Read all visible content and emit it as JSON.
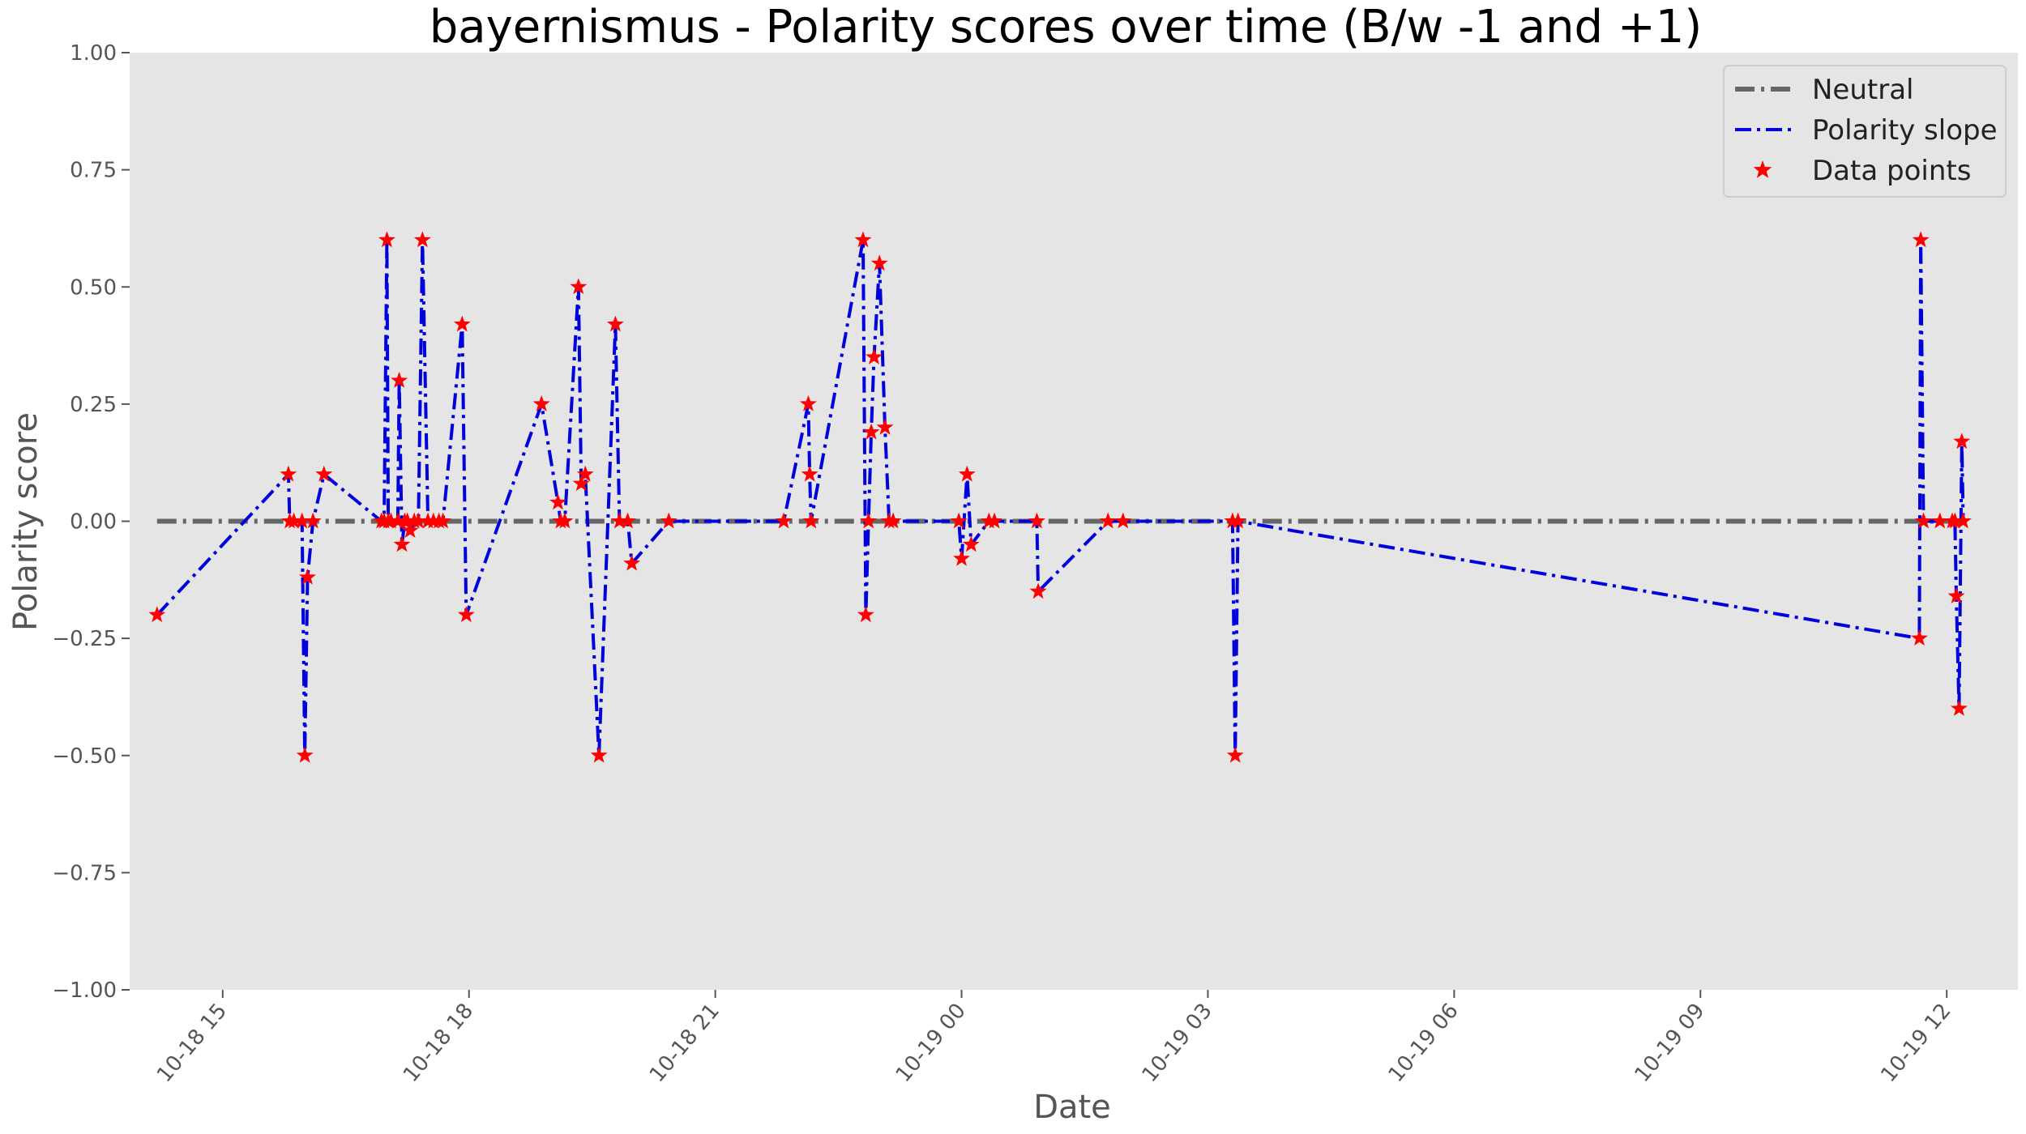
{
  "chart_data": {
    "type": "line",
    "title": "bayernismus - Polarity scores over time (B/w -1 and +1)",
    "xlabel": "Date",
    "ylabel": "Polarity score",
    "x_type": "datetime",
    "xlim": [
      "2023-10-18 13:52",
      "2023-10-19 12:52"
    ],
    "ylim": [
      -1.0,
      1.0
    ],
    "x_ticks": [
      {
        "t": "2023-10-18 15:00",
        "label": "10-18 15"
      },
      {
        "t": "2023-10-18 18:00",
        "label": "10-18 18"
      },
      {
        "t": "2023-10-18 21:00",
        "label": "10-18 21"
      },
      {
        "t": "2023-10-19 00:00",
        "label": "10-19 00"
      },
      {
        "t": "2023-10-19 03:00",
        "label": "10-19 03"
      },
      {
        "t": "2023-10-19 06:00",
        "label": "10-19 06"
      },
      {
        "t": "2023-10-19 09:00",
        "label": "10-19 09"
      },
      {
        "t": "2023-10-19 12:00",
        "label": "10-19 12"
      }
    ],
    "y_ticks": [
      {
        "v": 1.0,
        "label": "1.00"
      },
      {
        "v": 0.75,
        "label": "0.75"
      },
      {
        "v": 0.5,
        "label": "0.50"
      },
      {
        "v": 0.25,
        "label": "0.25"
      },
      {
        "v": 0.0,
        "label": "0.00"
      },
      {
        "v": -0.25,
        "label": "−0.25"
      },
      {
        "v": -0.5,
        "label": "−0.50"
      },
      {
        "v": -0.75,
        "label": "−0.75"
      },
      {
        "v": -1.0,
        "label": "−1.00"
      }
    ],
    "grid": false,
    "legend_position": "top-right",
    "series": [
      {
        "name": "Neutral",
        "style": "dash-dot",
        "color": "#666666",
        "x": [
          "2023-10-18 14:12",
          "2023-10-19 12:12"
        ],
        "y": [
          0,
          0
        ]
      },
      {
        "name": "Polarity slope",
        "style": "dash-dot",
        "color": "#0000dd",
        "marker_name": "Data points",
        "marker_color": "#ff0000",
        "x": [
          "2023-10-18 14:12",
          "2023-10-18 15:48",
          "2023-10-18 15:49",
          "2023-10-18 15:52",
          "2023-10-18 15:58",
          "2023-10-18 16:00",
          "2023-10-18 16:02",
          "2023-10-18 16:06",
          "2023-10-18 16:14",
          "2023-10-18 16:56",
          "2023-10-18 16:58",
          "2023-10-18 17:00",
          "2023-10-18 17:01",
          "2023-10-18 17:03",
          "2023-10-18 17:08",
          "2023-10-18 17:09",
          "2023-10-18 17:11",
          "2023-10-18 17:13",
          "2023-10-18 17:15",
          "2023-10-18 17:17",
          "2023-10-18 17:20",
          "2023-10-18 17:23",
          "2023-10-18 17:26",
          "2023-10-18 17:30",
          "2023-10-18 17:34",
          "2023-10-18 17:38",
          "2023-10-18 17:41",
          "2023-10-18 17:55",
          "2023-10-18 17:58",
          "2023-10-18 18:53",
          "2023-10-18 19:05",
          "2023-10-18 19:07",
          "2023-10-18 19:10",
          "2023-10-18 19:20",
          "2023-10-18 19:22",
          "2023-10-18 19:25",
          "2023-10-18 19:35",
          "2023-10-18 19:47",
          "2023-10-18 19:50",
          "2023-10-18 19:56",
          "2023-10-18 19:59",
          "2023-10-18 20:26",
          "2023-10-18 21:50",
          "2023-10-18 22:08",
          "2023-10-18 22:09",
          "2023-10-18 22:10",
          "2023-10-18 22:48",
          "2023-10-18 22:50",
          "2023-10-18 22:52",
          "2023-10-18 22:54",
          "2023-10-18 22:56",
          "2023-10-18 23:00",
          "2023-10-18 23:04",
          "2023-10-18 23:07",
          "2023-10-18 23:10",
          "2023-10-18 23:58",
          "2023-10-19 00:00",
          "2023-10-19 00:04",
          "2023-10-19 00:07",
          "2023-10-19 00:20",
          "2023-10-19 00:24",
          "2023-10-19 00:55",
          "2023-10-19 00:56",
          "2023-10-19 01:47",
          "2023-10-19 01:58",
          "2023-10-19 03:18",
          "2023-10-19 03:20",
          "2023-10-19 03:22",
          "2023-10-19 11:40",
          "2023-10-19 11:41",
          "2023-10-19 11:43",
          "2023-10-19 11:55",
          "2023-10-19 12:04",
          "2023-10-19 12:06",
          "2023-10-19 12:07",
          "2023-10-19 12:09",
          "2023-10-19 12:11",
          "2023-10-19 12:12"
        ],
        "y": [
          -0.2,
          0.1,
          0.0,
          0.0,
          0.0,
          -0.5,
          -0.12,
          0.0,
          0.1,
          0.0,
          0.0,
          0.6,
          0.0,
          0.0,
          0.0,
          0.3,
          -0.05,
          0.0,
          0.0,
          -0.02,
          0.0,
          0.0,
          0.6,
          0.0,
          0.0,
          0.0,
          0.0,
          0.42,
          -0.2,
          0.25,
          0.04,
          0.0,
          0.0,
          0.5,
          0.08,
          0.1,
          -0.5,
          0.42,
          0.0,
          0.0,
          -0.09,
          0.0,
          0.0,
          0.25,
          0.1,
          0.0,
          0.6,
          -0.2,
          0.0,
          0.19,
          0.35,
          0.55,
          0.2,
          0.0,
          0.0,
          0.0,
          -0.08,
          0.1,
          -0.05,
          0.0,
          0.0,
          0.0,
          -0.15,
          0.0,
          0.0,
          0.0,
          -0.5,
          0.0,
          -0.25,
          0.6,
          0.0,
          0.0,
          0.0,
          0.0,
          -0.16,
          -0.4,
          0.17,
          0.0
        ]
      }
    ]
  }
}
